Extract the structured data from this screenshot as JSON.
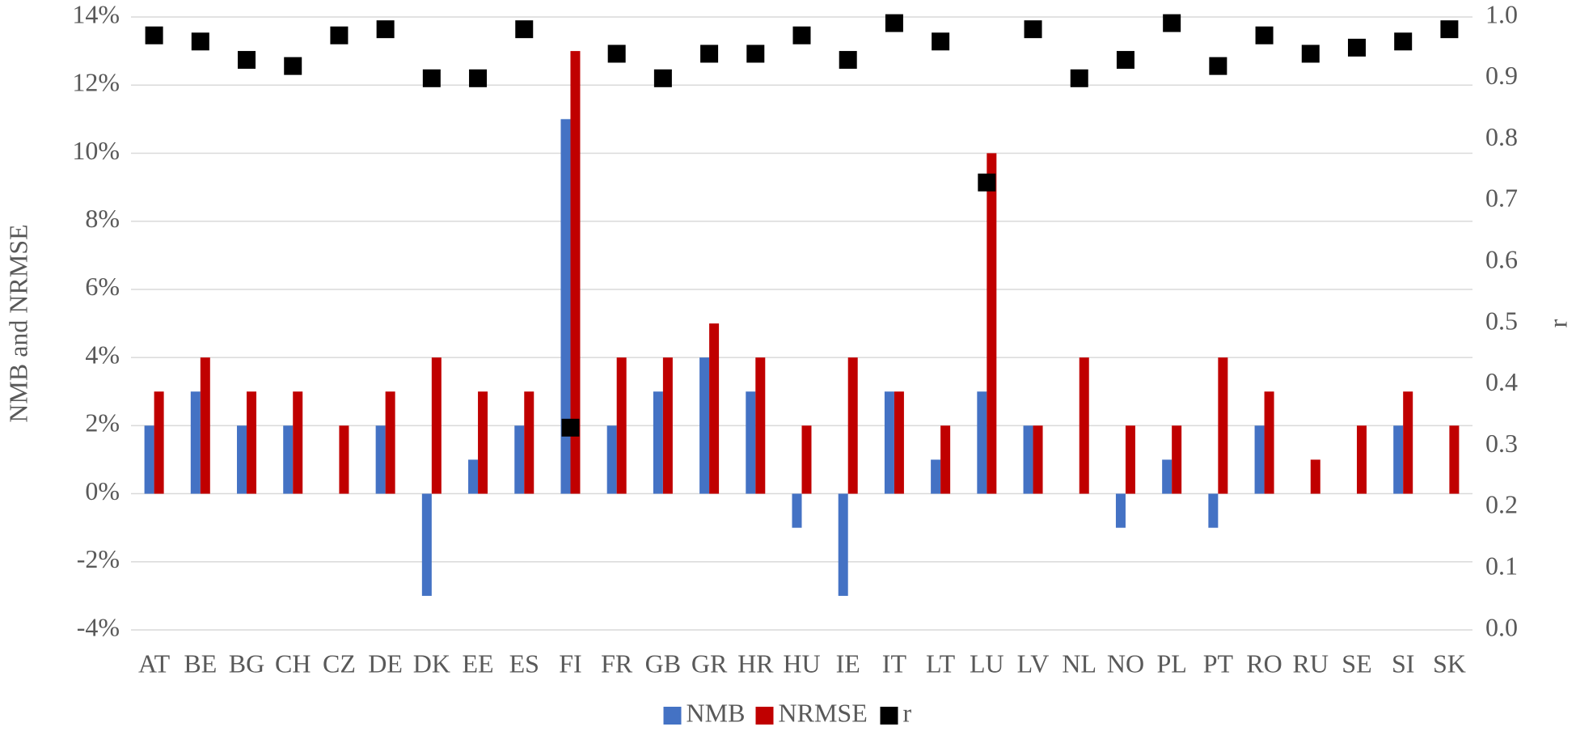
{
  "chart_data": {
    "type": "bar",
    "y_label": "NMB and NRMSE",
    "y2_label": "r",
    "categories": [
      "AT",
      "BE",
      "BG",
      "CH",
      "CZ",
      "DE",
      "DK",
      "EE",
      "ES",
      "FI",
      "FR",
      "GB",
      "GR",
      "HR",
      "HU",
      "IE",
      "IT",
      "LT",
      "LU",
      "LV",
      "NL",
      "NO",
      "PL",
      "PT",
      "RO",
      "RU",
      "SE",
      "SI",
      "SK"
    ],
    "series": [
      {
        "name": "NMB",
        "color": "#4472c4",
        "values": [
          2,
          3,
          2,
          2,
          0,
          2,
          -3,
          1,
          2,
          11,
          2,
          3,
          4,
          3,
          -1,
          -3,
          3,
          1,
          3,
          2,
          0,
          -1,
          1,
          -1,
          2,
          0,
          0,
          2,
          0
        ]
      },
      {
        "name": "NRMSE",
        "color": "#c00000",
        "values": [
          3,
          4,
          3,
          3,
          2,
          3,
          4,
          3,
          3,
          13,
          4,
          4,
          5,
          4,
          2,
          4,
          3,
          2,
          10,
          2,
          4,
          2,
          2,
          4,
          3,
          1,
          2,
          3,
          2
        ]
      },
      {
        "name": "r",
        "color": "#000000",
        "axis": "y2",
        "marker": "square",
        "values": [
          0.97,
          0.96,
          0.93,
          0.92,
          0.97,
          0.98,
          0.9,
          0.9,
          0.98,
          0.33,
          0.94,
          0.9,
          0.94,
          0.94,
          0.97,
          0.93,
          0.99,
          0.96,
          0.73,
          0.98,
          0.9,
          0.93,
          0.99,
          0.92,
          0.97,
          0.94,
          0.95,
          0.96,
          0.98
        ]
      }
    ],
    "ylim": [
      -4,
      14
    ],
    "yticks": [
      {
        "value": -4,
        "label": "-4%"
      },
      {
        "value": -2,
        "label": "-2%"
      },
      {
        "value": 0,
        "label": "0%"
      },
      {
        "value": 2,
        "label": "2%"
      },
      {
        "value": 4,
        "label": "4%"
      },
      {
        "value": 6,
        "label": "6%"
      },
      {
        "value": 8,
        "label": "8%"
      },
      {
        "value": 10,
        "label": "10%"
      },
      {
        "value": 12,
        "label": "12%"
      },
      {
        "value": 14,
        "label": "14%"
      }
    ],
    "y2lim": [
      0,
      1
    ],
    "y2ticks": [
      {
        "value": 0,
        "label": "0.0"
      },
      0.1,
      0.2,
      0.3,
      0.4,
      0.5,
      0.6,
      0.7,
      0.8,
      0.9,
      {
        "value": 1,
        "label": "1.0"
      }
    ],
    "grid": true,
    "legend": "bottom"
  }
}
